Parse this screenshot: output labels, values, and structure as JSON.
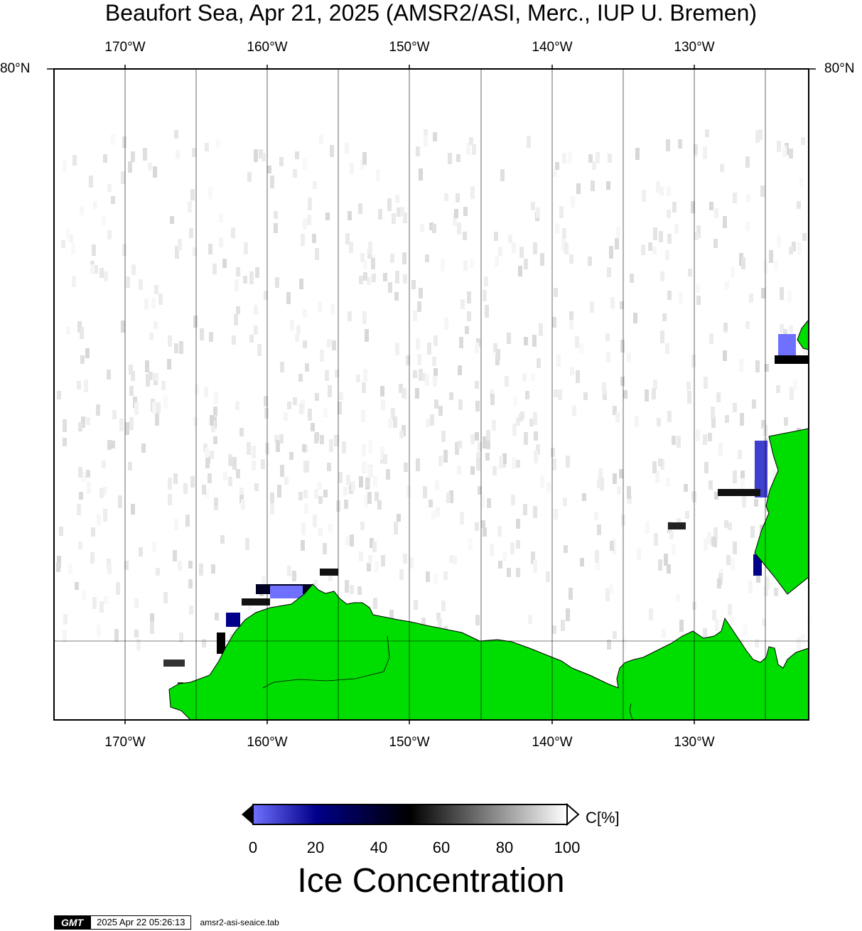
{
  "title": "Beaufort Sea, Apr 21, 2025 (AMSR2/ASI, Merc., IUP U. Bremen)",
  "map": {
    "lon_ticks": [
      "170°W",
      "160°W",
      "150°W",
      "140°W",
      "130°W"
    ],
    "lat_label_left": "80°N",
    "lat_label_right": "80°N",
    "land_color": "#00dd00",
    "ocean_color": "#ffffff",
    "gridline_color": "#000000"
  },
  "colorbar": {
    "ticks": [
      "0",
      "20",
      "40",
      "60",
      "80",
      "100"
    ],
    "unit": "C[%]",
    "title": "Ice Concentration",
    "colors": {
      "low": "#7070ff",
      "mid": "#00008a",
      "dark": "#000000",
      "high": "#ffffff"
    }
  },
  "footer": {
    "logo": "GMT",
    "timestamp": "2025 Apr 22 05:26:13",
    "filename": "amsr2-asi-seaice.tab"
  }
}
